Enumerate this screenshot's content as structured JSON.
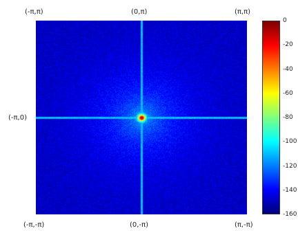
{
  "chart_data": {
    "type": "heatmap",
    "title": "",
    "corner_labels": {
      "top_left": "(-π,π)",
      "top_center": "(0,π)",
      "top_right": "(π,π)",
      "middle_left": "(-π,0)",
      "bottom_left": "(-π,-π)",
      "bottom_center": "(0,-π)",
      "bottom_right": "(π,-π)"
    },
    "x_range": [
      "-π",
      "π"
    ],
    "y_range": [
      "-π",
      "π"
    ],
    "colorbar": {
      "colormap": "jet",
      "range": [
        -160,
        0
      ],
      "ticks": [
        "0",
        "-20",
        "-40",
        "-60",
        "-80",
        "-100",
        "-120",
        "-140",
        "-160"
      ]
    },
    "peak": {
      "x": 0,
      "y": 0,
      "value": 0
    },
    "background_level": -150,
    "axis_cross_level": -110
  }
}
